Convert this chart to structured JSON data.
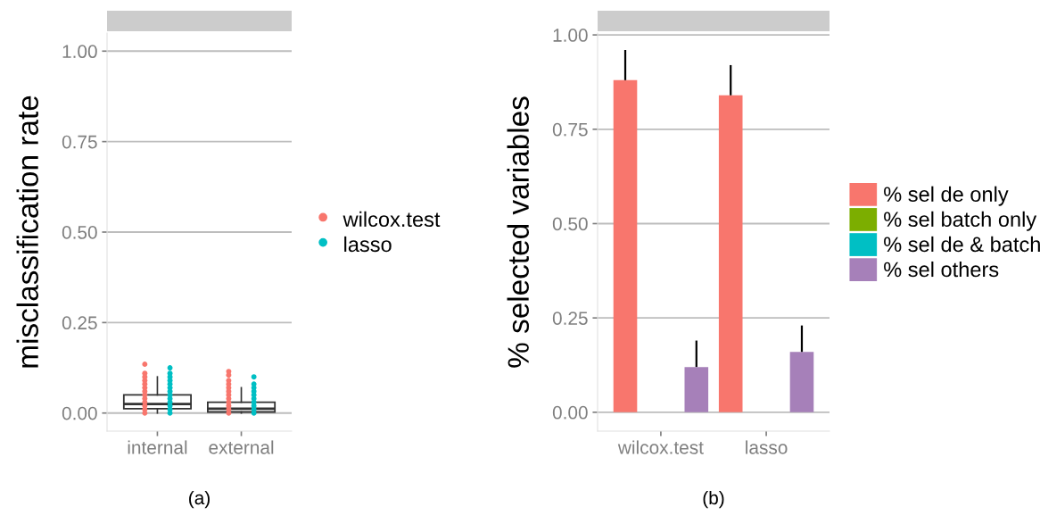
{
  "chart_data": [
    {
      "type": "box",
      "categories": [
        "internal",
        "external"
      ],
      "ylabel": "misclassification rate",
      "ylim": [
        -0.05,
        1.05
      ],
      "yticks": [
        {
          "value": 0,
          "label": "0.00"
        },
        {
          "value": 0.25,
          "label": "0.25"
        },
        {
          "value": 0.5,
          "label": "0.50"
        },
        {
          "value": 0.75,
          "label": "0.75"
        },
        {
          "value": 1,
          "label": "1.00"
        }
      ],
      "grid": "y",
      "legend": "right",
      "annotations": [
        "(a)"
      ],
      "boxes": [
        {
          "low": 0,
          "q1": 0.012,
          "median": 0.025,
          "q3": 0.05,
          "high": 0.1
        },
        {
          "low": 0,
          "q1": 0.003,
          "median": 0.012,
          "q3": 0.03,
          "high": 0.07
        }
      ],
      "series": [
        {
          "name": "wilcox.test",
          "type": "scatter",
          "color": "#f8766d",
          "x": [
            "internal",
            "internal",
            "internal",
            "internal",
            "internal",
            "internal",
            "internal",
            "internal",
            "internal",
            "internal",
            "internal",
            "internal",
            "internal",
            "external",
            "external",
            "external",
            "external",
            "external",
            "external",
            "external",
            "external",
            "external",
            "external",
            "external",
            "external"
          ],
          "values": [
            0,
            0.01,
            0.02,
            0.03,
            0.04,
            0.05,
            0.06,
            0.07,
            0.08,
            0.09,
            0.1,
            0.11,
            0.135,
            0,
            0.01,
            0.02,
            0.03,
            0.04,
            0.05,
            0.06,
            0.07,
            0.08,
            0.09,
            0.105,
            0.115
          ]
        },
        {
          "name": "lasso",
          "type": "scatter",
          "color": "#00bfc4",
          "x": [
            "internal",
            "internal",
            "internal",
            "internal",
            "internal",
            "internal",
            "internal",
            "internal",
            "internal",
            "internal",
            "internal",
            "internal",
            "internal",
            "external",
            "external",
            "external",
            "external",
            "external",
            "external",
            "external",
            "external",
            "external",
            "external"
          ],
          "values": [
            0,
            0.01,
            0.02,
            0.03,
            0.04,
            0.05,
            0.06,
            0.07,
            0.08,
            0.09,
            0.1,
            0.11,
            0.125,
            0,
            0.01,
            0.02,
            0.03,
            0.04,
            0.05,
            0.06,
            0.07,
            0.08,
            0.1
          ]
        }
      ]
    },
    {
      "type": "bar",
      "categories": [
        "wilcox.test",
        "lasso"
      ],
      "ylabel": "% selected variables",
      "ylim": [
        -0.05,
        1.005
      ],
      "yticks": [
        {
          "value": 0,
          "label": "0.00"
        },
        {
          "value": 0.25,
          "label": "0.25"
        },
        {
          "value": 0.5,
          "label": "0.50"
        },
        {
          "value": 0.75,
          "label": "0.75"
        },
        {
          "value": 1,
          "label": "1.00"
        }
      ],
      "grid": "y",
      "legend": "right",
      "annotations": [
        "(b)"
      ],
      "series": [
        {
          "name": "% sel de only",
          "color": "#f8766d",
          "values": [
            0.88,
            0.84
          ],
          "errors": [
            [
              0.88,
              0.96
            ],
            [
              0.84,
              0.92
            ]
          ]
        },
        {
          "name": "% sel batch only",
          "color": "#7cae00",
          "values": [
            0,
            0
          ]
        },
        {
          "name": "% sel de & batch",
          "color": "#00bfc4",
          "values": [
            0,
            0
          ]
        },
        {
          "name": "% sel others",
          "color": "#a680b9",
          "values": [
            0.12,
            0.16
          ],
          "errors": [
            [
              0.12,
              0.19
            ],
            [
              0.16,
              0.23
            ]
          ]
        }
      ]
    }
  ]
}
